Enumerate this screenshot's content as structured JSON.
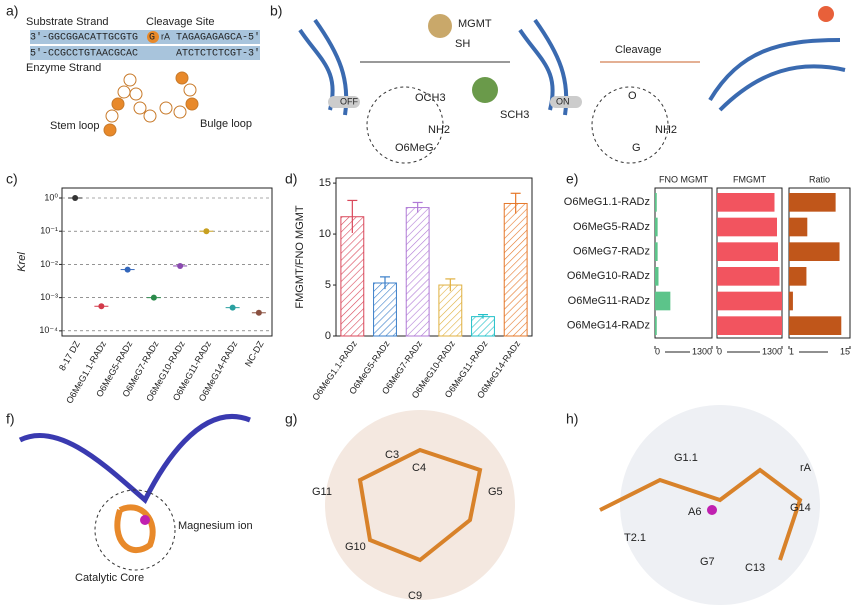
{
  "panels": {
    "labels": [
      "a)",
      "b)",
      "c)",
      "d)",
      "e)",
      "f)",
      "g)",
      "h)"
    ]
  },
  "diagram_a": {
    "substrate": "Substrate Strand",
    "cleavage": "Cleavage Site",
    "enzyme": "Enzyme Strand",
    "stem": "Stem loop",
    "bulge": "Bulge loop",
    "top_left": "3'-GGCGGACATTGCGTG",
    "top_mid": "G",
    "top_ra": "rA",
    "top_right": "TAGAGAGAGCA-5'",
    "bottom_left": "5'-CCGCCTGTAACGCAC",
    "bottom_right": "ATCTCTCTCGT-3'"
  },
  "diagram_b": {
    "mgmt": "MGMT",
    "sh": "SH",
    "och3": "OCH3",
    "nh2_left": "NH2",
    "o6meg": "O6MeG",
    "sch3": "SCH3",
    "off": "OFF",
    "on": "ON",
    "o": "O",
    "nh2_right": "NH2",
    "g": "G",
    "cleavage": "Cleavage"
  },
  "diagram_f": {
    "mg": "Magnesium ion",
    "core": "Catalytic Core"
  },
  "diagram_g": {
    "labels": [
      "C3",
      "C4",
      "G11",
      "G5",
      "G10",
      "C9"
    ]
  },
  "diagram_h": {
    "labels": [
      "G1.1",
      "rA",
      "A6",
      "G14",
      "T2.1",
      "G7",
      "C13"
    ]
  },
  "chart_data": [
    {
      "type": "dot",
      "ylabel": "Krel",
      "categories": [
        "8-17 DZ",
        "O6MeG1.1-RADz",
        "O6MeG5-RADz",
        "O6MeG7-RADz",
        "O6MeG10-RADz",
        "O6MeG11-RADz",
        "O6MeG14-RADz",
        "NC-DZ"
      ],
      "values": [
        1.0,
        0.00055,
        0.007,
        0.001,
        0.009,
        0.1,
        0.0005,
        0.00035
      ],
      "colors": [
        "#333333",
        "#d33a4a",
        "#3366bb",
        "#2a8a4a",
        "#8a4ab0",
        "#c8a020",
        "#2aa0a0",
        "#8a5040"
      ],
      "log": true,
      "grid": true,
      "ylim": [
        7e-05,
        2
      ],
      "yticks": [
        {
          "value": 0.0001,
          "label": "10⁻⁴"
        },
        {
          "value": 0.001,
          "label": "10⁻³"
        },
        {
          "value": 0.01,
          "label": "10⁻²"
        },
        {
          "value": 0.1,
          "label": "10⁻¹"
        },
        {
          "value": 1,
          "label": "10⁰"
        }
      ]
    },
    {
      "type": "bar",
      "ylabel": "FMGMT/FNO MGMT",
      "categories": [
        "O6MeG1.1-RADz",
        "O6MeG5-RADz",
        "O6MeG7-RADz",
        "O6MeG10-RADz",
        "O6MeG11-RADz",
        "O6MeG14-RADz"
      ],
      "values": [
        11.7,
        5.2,
        12.6,
        5.0,
        1.9,
        13.0
      ],
      "errors": [
        1.6,
        0.6,
        0.5,
        0.6,
        0.2,
        1.0
      ],
      "colors": [
        "#d9475a",
        "#3a7ec9",
        "#b07ad6",
        "#e0b040",
        "#22c0c8",
        "#e6782a"
      ],
      "hatch": true,
      "ylim": [
        0,
        15.5
      ],
      "yticks": [
        0,
        5,
        10,
        15
      ]
    },
    {
      "type": "hbar-panels",
      "categories": [
        "O6MeG1.1-RADz",
        "O6MeG5-RADz",
        "O6MeG7-RADz",
        "O6MeG10-RADz",
        "O6MeG11-RADz",
        "O6MeG14-RADz"
      ],
      "series": [
        {
          "name": "FNO MGMT",
          "color": "#5cc48a",
          "values": [
            40,
            60,
            60,
            80,
            350,
            40
          ],
          "xlim": [
            0,
            1300
          ],
          "xticks": [
            0,
            1300
          ]
        },
        {
          "name": "FMGMT",
          "color": "#f2545f",
          "values": [
            1150,
            1200,
            1220,
            1250,
            1300,
            1300
          ],
          "xlim": [
            0,
            1300
          ],
          "xticks": [
            0,
            1300
          ]
        },
        {
          "name": "Ratio",
          "color": "#c0561a",
          "values": [
            11.7,
            5.2,
            12.6,
            5.0,
            1.9,
            13.0
          ],
          "xlim": [
            1,
            15
          ],
          "xticks": [
            1,
            15
          ]
        }
      ]
    }
  ]
}
